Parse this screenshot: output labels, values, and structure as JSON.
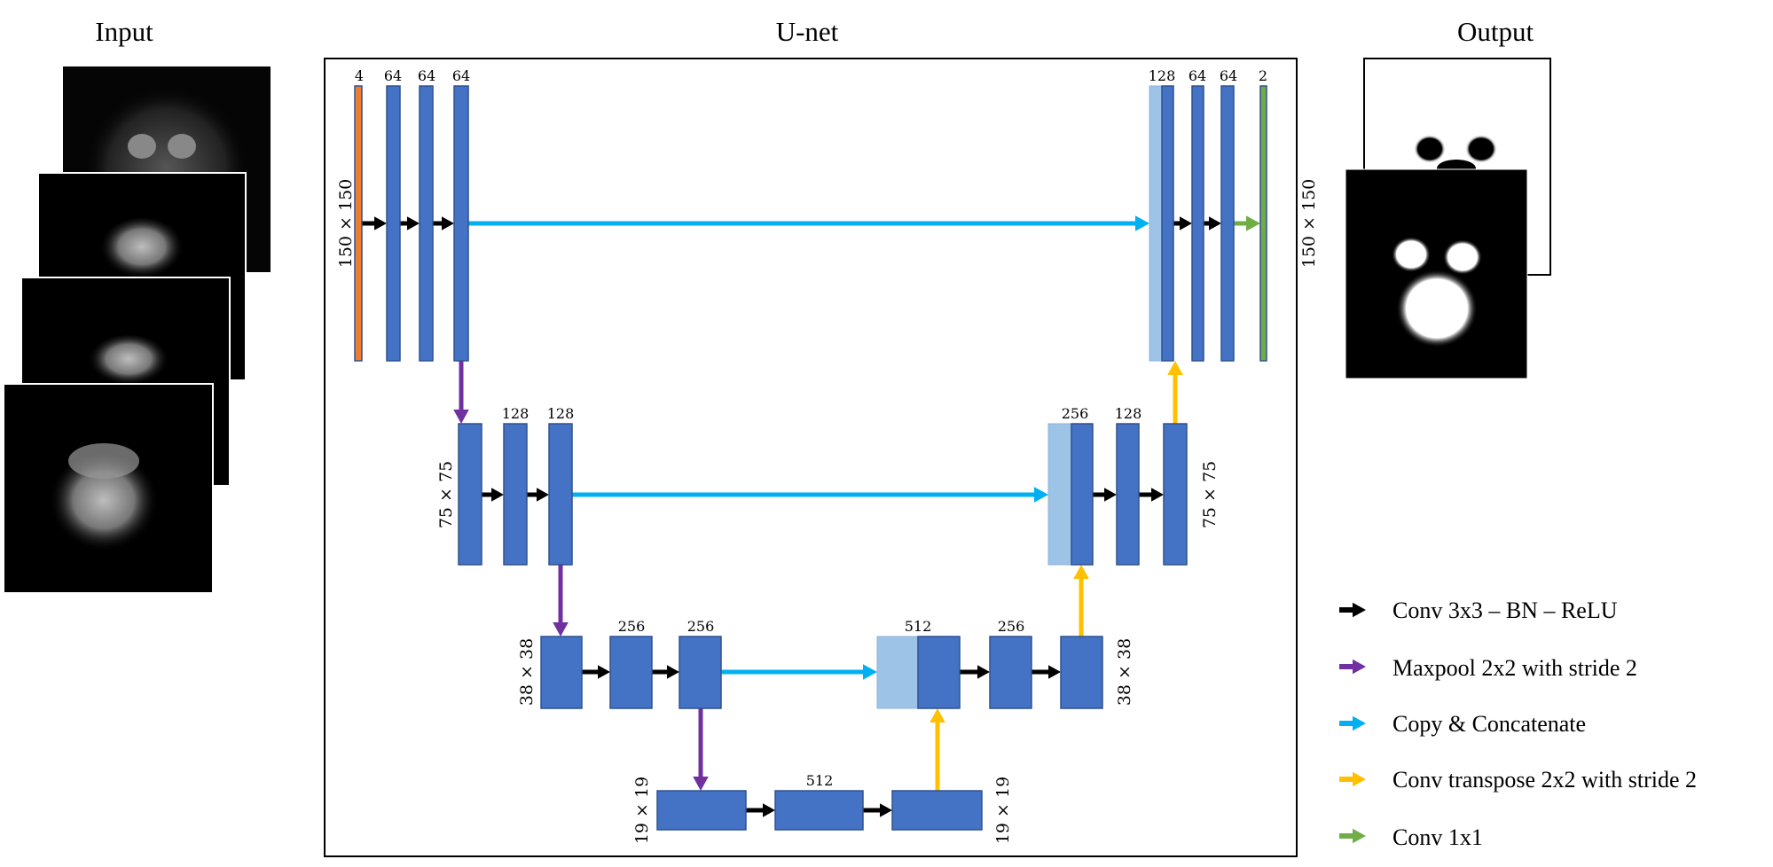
{
  "titles": {
    "input": "Input",
    "unet": "U-net",
    "output": "Output"
  },
  "levels": [
    {
      "size": "150 × 150",
      "encoder_channels": [
        "4",
        "64",
        "64",
        "64"
      ],
      "decoder_channels": [
        "128",
        "64",
        "64",
        "2"
      ]
    },
    {
      "size": "75 × 75",
      "encoder_channels": [
        "128",
        "128"
      ],
      "decoder_channels": [
        "256",
        "128"
      ]
    },
    {
      "size": "38 × 38",
      "encoder_channels": [
        "256",
        "256"
      ],
      "decoder_channels": [
        "512",
        "256"
      ]
    },
    {
      "size": "19 × 19",
      "bottleneck_channels": "512"
    }
  ],
  "legend": [
    {
      "label": "Conv 3x3 – BN – ReLU",
      "color": "#000000"
    },
    {
      "label": "Maxpool 2x2 with stride 2",
      "color": "#7030a0"
    },
    {
      "label": "Copy & Concatenate",
      "color": "#00b0f0"
    },
    {
      "label": "Conv transpose 2x2 with stride 2",
      "color": "#ffc000"
    },
    {
      "label": "Conv 1x1",
      "color": "#70ad47"
    }
  ],
  "colors": {
    "feature_map": "#4472c4",
    "copied_map": "#9dc3e6",
    "input_map": "#ed7d31",
    "output_map": "#70ad47"
  }
}
